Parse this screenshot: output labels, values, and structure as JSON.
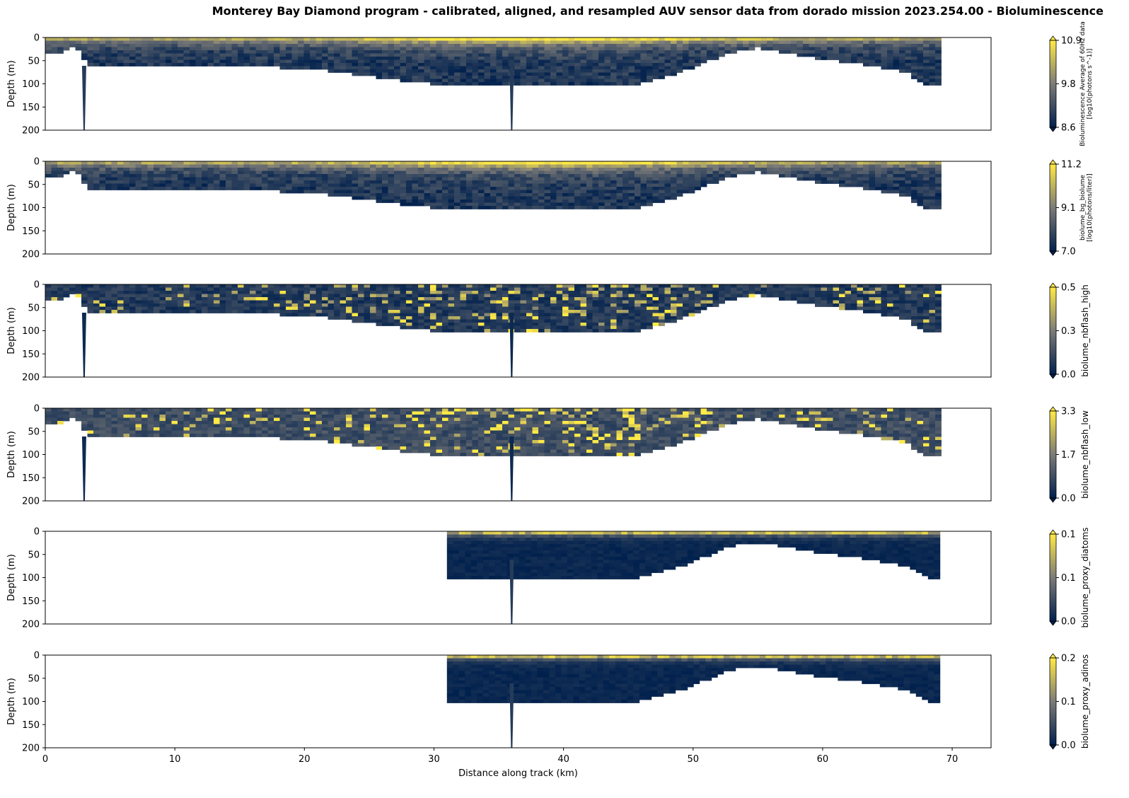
{
  "title": "Monterey Bay Diamond program - calibrated, aligned, and resampled AUV sensor data from dorado mission 2023.254.00 - Bioluminescence",
  "colors": {
    "low": "#00204d",
    "mid": "#7c7b78",
    "high": "#ffea46",
    "colormap": "cividis"
  },
  "chart_data": {
    "type": "heatmap",
    "xlabel": "Distance along track (km)",
    "xlim": [
      0,
      73
    ],
    "x_ticks": [
      0,
      10,
      20,
      30,
      40,
      50,
      60,
      70
    ],
    "ylim": [
      200,
      0
    ],
    "y_ticks": [
      0,
      50,
      100,
      150,
      200
    ],
    "ylabel": "Depth (m)",
    "track_profile": {
      "distance_km": [
        0,
        1,
        2,
        3,
        4,
        6,
        8,
        10,
        12,
        14,
        16,
        18,
        20,
        22,
        24,
        26,
        28,
        30,
        31,
        33,
        35,
        36,
        38,
        40,
        42,
        44,
        46,
        48,
        50,
        52,
        54,
        55,
        56,
        58,
        60,
        62,
        64,
        66,
        68,
        69
      ],
      "max_depth_m": [
        30,
        28,
        14,
        55,
        56,
        57,
        58,
        58,
        58,
        59,
        60,
        62,
        66,
        70,
        78,
        86,
        93,
        97,
        100,
        100,
        100,
        100,
        100,
        100,
        100,
        100,
        95,
        80,
        60,
        36,
        22,
        20,
        26,
        36,
        44,
        52,
        60,
        70,
        100,
        100
      ]
    },
    "dive_spikes": [
      {
        "distance_km": 3.0,
        "depth_m": 200
      },
      {
        "distance_km": 36.0,
        "depth_m": 200
      }
    ],
    "panels": [
      {
        "id": "p1",
        "colorbar_label": "Bioluminescence Average of 60Hz data\n[log10(photons s^-1)]",
        "clim": [
          8.6,
          10.9
        ],
        "cbar_ticks": [
          "8.6",
          "9.8",
          "10.9"
        ],
        "x_start_km": 0,
        "has_spikes": true,
        "surface_bright": true
      },
      {
        "id": "p2",
        "colorbar_label": "biolume_bg_biolume\n[log10(photons/liter)]",
        "clim": [
          7.0,
          11.2
        ],
        "cbar_ticks": [
          "7.0",
          "9.1",
          "11.2"
        ],
        "x_start_km": 0,
        "has_spikes": false,
        "surface_bright": true
      },
      {
        "id": "p3",
        "colorbar_label": "biolume_nbflash_high",
        "clim": [
          0.0,
          0.5
        ],
        "cbar_ticks": [
          "0.0",
          "0.3",
          "0.5"
        ],
        "x_start_km": 0,
        "has_spikes": true,
        "surface_bright": false
      },
      {
        "id": "p4",
        "colorbar_label": "biolume_nbflash_low",
        "clim": [
          0.0,
          3.3
        ],
        "cbar_ticks": [
          "0.0",
          "1.7",
          "3.3"
        ],
        "x_start_km": 0,
        "has_spikes": true,
        "surface_bright": false
      },
      {
        "id": "p5",
        "colorbar_label": "biolume_proxy_diatoms",
        "clim": [
          0.0,
          0.1
        ],
        "cbar_ticks": [
          "0.0",
          "0.1",
          "0.1"
        ],
        "x_start_km": 31,
        "has_spikes": true,
        "surface_bright": true
      },
      {
        "id": "p6",
        "colorbar_label": "biolume_proxy_adinos",
        "clim": [
          0.0,
          0.2
        ],
        "cbar_ticks": [
          "0.0",
          "0.1",
          "0.2"
        ],
        "x_start_km": 31,
        "has_spikes": true,
        "surface_bright": true
      }
    ]
  }
}
